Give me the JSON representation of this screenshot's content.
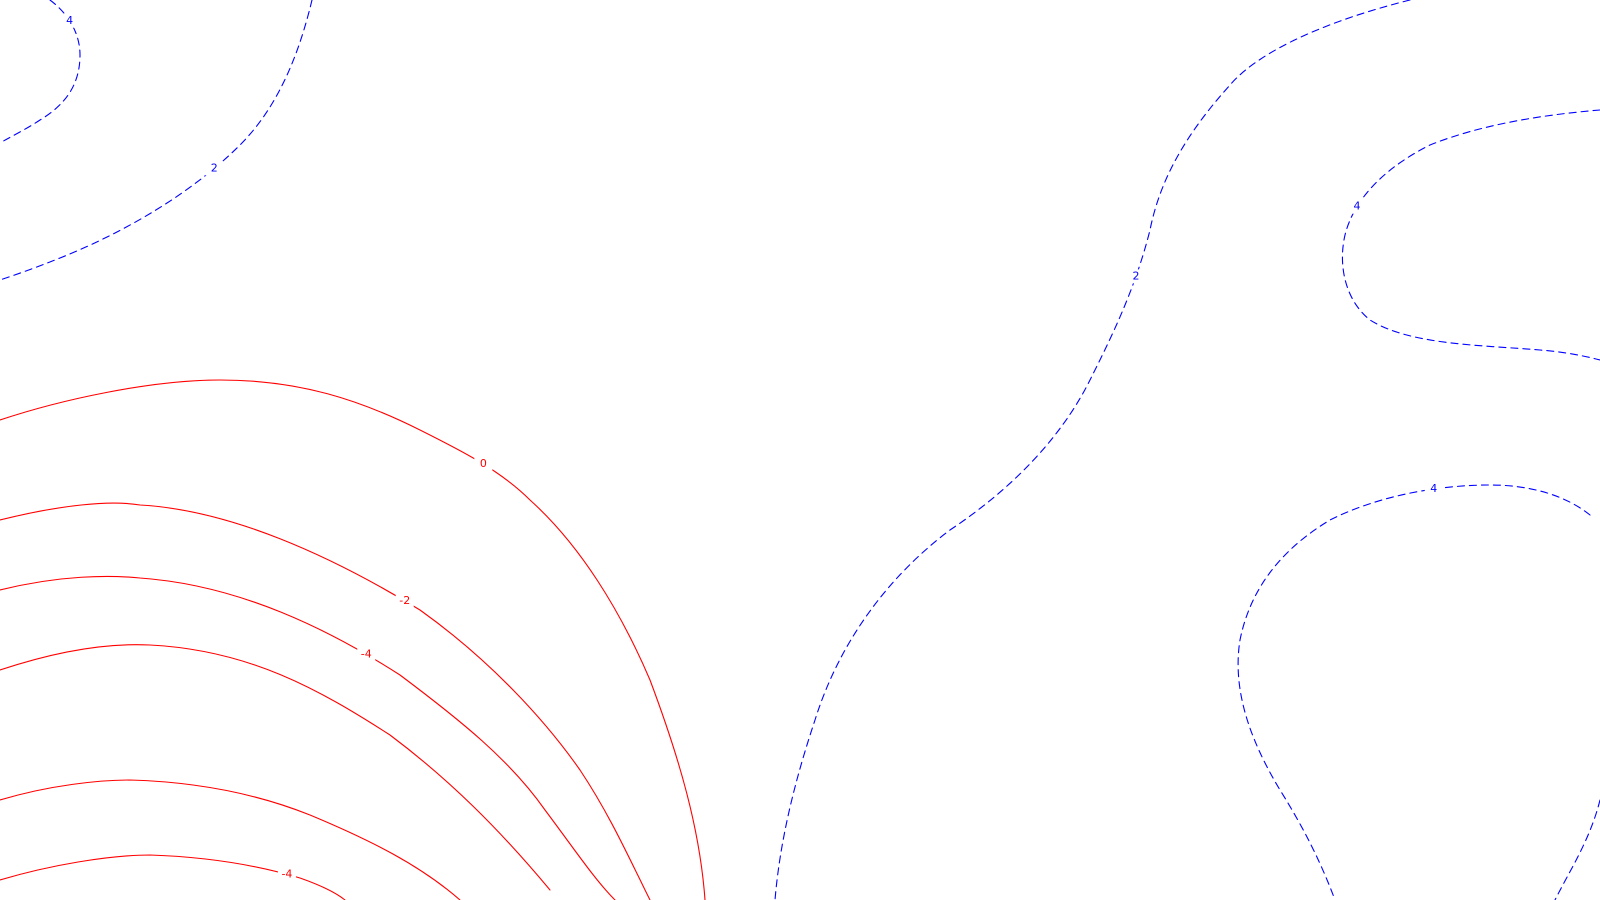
{
  "map": {
    "title": "",
    "colors": {
      "negative": "#ff0000",
      "positive": "#0000ff",
      "background": "#ffffff"
    },
    "contours": [
      {
        "id": "neg-0",
        "level": "0",
        "sign": "negative",
        "label": "0"
      },
      {
        "id": "neg-2",
        "level": "-2",
        "sign": "negative",
        "label": "-2"
      },
      {
        "id": "neg-4a",
        "level": "-4",
        "sign": "negative",
        "label": "-4"
      },
      {
        "id": "neg-4b",
        "level": "-4",
        "sign": "negative",
        "label": ""
      },
      {
        "id": "neg-4c",
        "level": "-4",
        "sign": "negative",
        "label": ""
      },
      {
        "id": "neg-4d",
        "level": "-4",
        "sign": "negative",
        "label": "-4"
      },
      {
        "id": "pos-4-tl",
        "level": "4",
        "sign": "positive",
        "label": "4"
      },
      {
        "id": "pos-2-tl",
        "level": "2",
        "sign": "positive",
        "label": "2"
      },
      {
        "id": "pos-2-mid",
        "level": "2",
        "sign": "positive",
        "label": "2"
      },
      {
        "id": "pos-4-tr",
        "level": "4",
        "sign": "positive",
        "label": "4"
      },
      {
        "id": "pos-4-br",
        "level": "4",
        "sign": "positive",
        "label": "4"
      },
      {
        "id": "pos-br-edge",
        "level": "4",
        "sign": "positive",
        "label": ""
      }
    ]
  }
}
